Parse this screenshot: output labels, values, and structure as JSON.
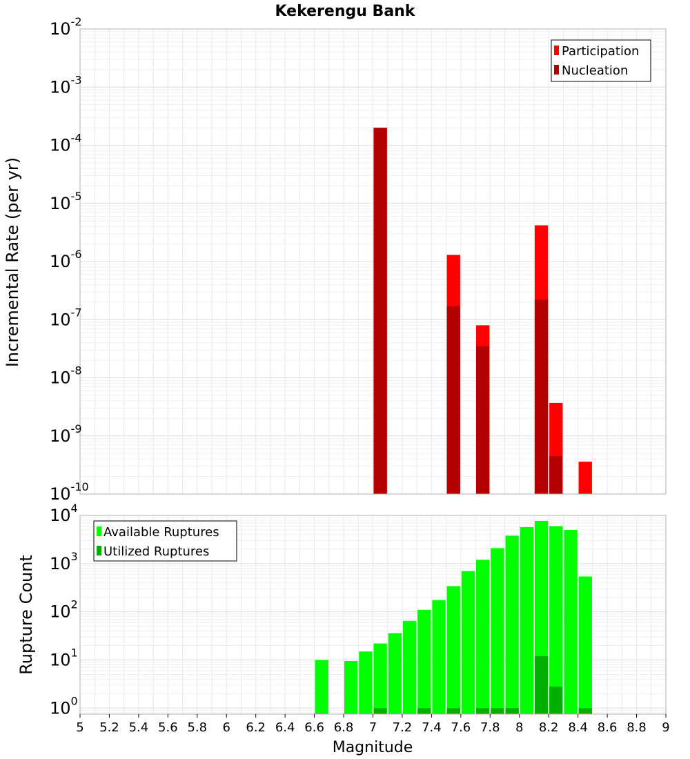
{
  "chart_data": [
    {
      "type": "bar",
      "title": "Kekerengu Bank",
      "xlabel": "",
      "ylabel": "Incremental Rate (per yr)",
      "y_scale": "log",
      "xlim": [
        5,
        9
      ],
      "ylim": [
        1e-10,
        0.01
      ],
      "y_ticks": [
        {
          "base": "10",
          "exp": "-10",
          "value": 1e-10
        },
        {
          "base": "10",
          "exp": "-9",
          "value": 1e-09
        },
        {
          "base": "10",
          "exp": "-8",
          "value": 1e-08
        },
        {
          "base": "10",
          "exp": "-7",
          "value": 1e-07
        },
        {
          "base": "10",
          "exp": "-6",
          "value": 1e-06
        },
        {
          "base": "10",
          "exp": "-5",
          "value": 1e-05
        },
        {
          "base": "10",
          "exp": "-4",
          "value": 0.0001
        },
        {
          "base": "10",
          "exp": "-3",
          "value": 0.001
        },
        {
          "base": "10",
          "exp": "-2",
          "value": 0.01
        }
      ],
      "grid": true,
      "legend_position": "top-right",
      "series": [
        {
          "name": "Participation",
          "color": "#ff0000",
          "points": [
            {
              "x": 7.05,
              "y": 0.0002
            },
            {
              "x": 7.55,
              "y": 1.3e-06
            },
            {
              "x": 7.75,
              "y": 8e-08
            },
            {
              "x": 8.15,
              "y": 4.2e-06
            },
            {
              "x": 8.25,
              "y": 3.7e-09
            },
            {
              "x": 8.45,
              "y": 3.6e-10
            }
          ]
        },
        {
          "name": "Nucleation",
          "color": "#b30000",
          "points": [
            {
              "x": 7.05,
              "y": 0.0002
            },
            {
              "x": 7.55,
              "y": 1.7e-07
            },
            {
              "x": 7.75,
              "y": 3.5e-08
            },
            {
              "x": 8.15,
              "y": 2.2e-07
            },
            {
              "x": 8.25,
              "y": 4.5e-10
            }
          ]
        }
      ]
    },
    {
      "type": "bar",
      "title": "",
      "xlabel": "Magnitude",
      "ylabel": "Rupture Count",
      "y_scale": "log",
      "xlim": [
        5,
        9
      ],
      "ylim": [
        0.75,
        10000
      ],
      "x_ticks": [
        "5",
        "5.2",
        "5.4",
        "5.6",
        "5.8",
        "6",
        "6.2",
        "6.4",
        "6.6",
        "6.8",
        "7",
        "7.2",
        "7.4",
        "7.6",
        "7.8",
        "8",
        "8.2",
        "8.4",
        "8.6",
        "8.8",
        "9"
      ],
      "y_ticks": [
        {
          "base": "10",
          "exp": "0",
          "value": 1
        },
        {
          "base": "10",
          "exp": "1",
          "value": 10
        },
        {
          "base": "10",
          "exp": "2",
          "value": 100
        },
        {
          "base": "10",
          "exp": "3",
          "value": 1000
        },
        {
          "base": "10",
          "exp": "4",
          "value": 10000
        }
      ],
      "grid": true,
      "legend_position": "top-left",
      "series": [
        {
          "name": "Available Ruptures",
          "color": "#00ff00",
          "points": [
            {
              "x": 6.65,
              "y": 10
            },
            {
              "x": 6.85,
              "y": 9.5
            },
            {
              "x": 6.95,
              "y": 15
            },
            {
              "x": 7.05,
              "y": 22
            },
            {
              "x": 7.15,
              "y": 36
            },
            {
              "x": 7.25,
              "y": 65
            },
            {
              "x": 7.35,
              "y": 110
            },
            {
              "x": 7.45,
              "y": 175
            },
            {
              "x": 7.55,
              "y": 340
            },
            {
              "x": 7.65,
              "y": 700
            },
            {
              "x": 7.75,
              "y": 1200
            },
            {
              "x": 7.85,
              "y": 2100
            },
            {
              "x": 7.95,
              "y": 3800
            },
            {
              "x": 8.05,
              "y": 5700
            },
            {
              "x": 8.15,
              "y": 7700
            },
            {
              "x": 8.25,
              "y": 6000
            },
            {
              "x": 8.35,
              "y": 5000
            },
            {
              "x": 8.45,
              "y": 540
            }
          ]
        },
        {
          "name": "Utilized Ruptures",
          "color": "#00b000",
          "points": [
            {
              "x": 7.05,
              "y": 1
            },
            {
              "x": 7.35,
              "y": 1
            },
            {
              "x": 7.55,
              "y": 1
            },
            {
              "x": 7.75,
              "y": 1
            },
            {
              "x": 7.85,
              "y": 1
            },
            {
              "x": 7.95,
              "y": 1
            },
            {
              "x": 8.15,
              "y": 12
            },
            {
              "x": 8.25,
              "y": 2.8
            },
            {
              "x": 8.45,
              "y": 1
            }
          ]
        }
      ]
    }
  ]
}
